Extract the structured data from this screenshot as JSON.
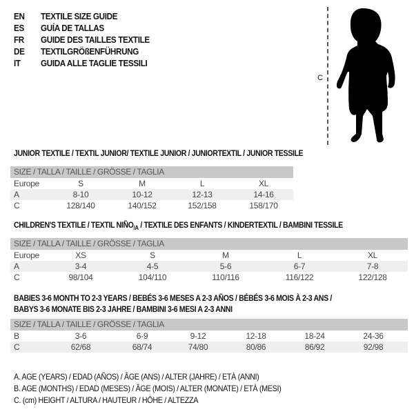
{
  "header": {
    "languages": [
      {
        "code": "EN",
        "text": "TEXTILE SIZE GUIDE"
      },
      {
        "code": "ES",
        "text": "GUÍA DE TALLAS"
      },
      {
        "code": "FR",
        "text": "GUIDE DES TAILLES TEXTILE"
      },
      {
        "code": "DE",
        "text": "TEXTILGRÖßENFÜHRUNG"
      },
      {
        "code": "IT",
        "text": "GUIDA ALLE TAGLIE TESSILI"
      }
    ]
  },
  "figure": {
    "measure_label": "C",
    "icon": "child-silhouette-icon"
  },
  "tables": [
    {
      "title": "JUNIOR TEXTILE / TEXTIL JUNIOR/ TEXTILE JUNIOR / JUNIORTEXTIL / JUNIOR TESSILE",
      "title2": "",
      "header": "SIZE / TALLA / TAILLE / GRÖSSE / TAGLIA",
      "rows": [
        {
          "label": "Europe",
          "values": [
            "S",
            "M",
            "L",
            "XL"
          ]
        },
        {
          "label": "A",
          "values": [
            "8-10",
            "10-12",
            "12-13",
            "14-16"
          ]
        },
        {
          "label": "C",
          "values": [
            "128/140",
            "140/152",
            "152/158",
            "158/170"
          ]
        }
      ]
    },
    {
      "title": "CHILDREN'S TEXTILE / TEXTIL NIÑO",
      "title_sub": "/A",
      "title_rest": " / TEXTILE DES ENFANTS / KINDERTEXTIL / BAMBINI TESSILE",
      "header": "SIZE / TALLA / TAILLE / GRÖSSE / TAGLIA",
      "rows": [
        {
          "label": "Europe",
          "values": [
            "XS",
            "S",
            "M",
            "L",
            "XL"
          ]
        },
        {
          "label": "A",
          "values": [
            "3-4",
            "4-5",
            "5-6",
            "6-7",
            "7-8"
          ]
        },
        {
          "label": "C",
          "values": [
            "98/104",
            "104/110",
            "110/116",
            "116/122",
            "122/128"
          ]
        }
      ]
    },
    {
      "title": "BABIES 3-6 MONTH TO 2-3 YEARS / BEBÉS 3-6 MESES A 2-3 AÑOS / BÉBÉS 3-6 MOIS À 2-3 ANS /",
      "title2": "BABYS 3-6 MONATE BIS 2-3 JAHRE / BAMBINI 3-6 MESI A 2-3 ANNI",
      "header": "SIZE / TALLA / TAILLE / GRÖSSE / TAGLIA",
      "rows": [
        {
          "label": "B",
          "values": [
            "3-6",
            "6-9",
            "9-12",
            "12-18",
            "18-24",
            "24-36"
          ]
        },
        {
          "label": "C",
          "values": [
            "62/68",
            "68/74",
            "74/80",
            "80/86",
            "86/92",
            "92/98"
          ]
        }
      ]
    }
  ],
  "legend": [
    "A. AGE (YEARS) / EDAD (AÑOS) / ÂGE (ANS) / ALTER (JAHRE) / ETÀ (ANNI)",
    "B. AGE (MONTHS) / EDAD (MESES) / ÂGE (MOIS) / ALTER (MONATE) / ETÀ (MESI)",
    "C. (cm) HEIGHT / ALTURA / HAUTEUR / HÖHE / ALTEZZA"
  ],
  "colors": {
    "header_bar": "#c9c9c9",
    "row_shade": "#efefef"
  }
}
